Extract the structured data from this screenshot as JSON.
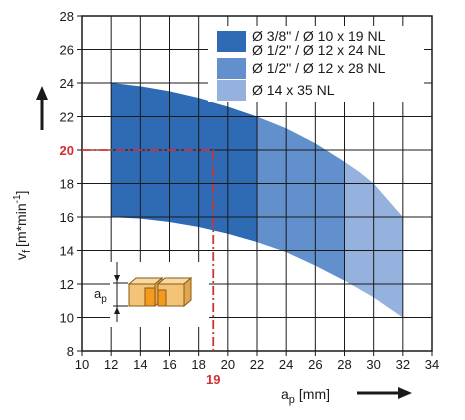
{
  "chart_data": {
    "type": "area",
    "title": "",
    "xlabel": {
      "main": "a",
      "sub": "p",
      "unit": "[mm]"
    },
    "ylabel": {
      "main": "v",
      "sub": "f",
      "unit": "[m*min",
      "exp": "-1",
      "close": "]"
    },
    "xlim": [
      10,
      34
    ],
    "ylim": [
      8,
      28
    ],
    "xticks": [
      "10",
      "12",
      "14",
      "16",
      "18",
      "20",
      "22",
      "24",
      "26",
      "28",
      "30",
      "32",
      "34"
    ],
    "yticks": [
      "8",
      "10",
      "12",
      "14",
      "16",
      "18",
      "20",
      "22",
      "24",
      "26",
      "28"
    ],
    "grid": true,
    "legend_position": "top-right",
    "series": [
      {
        "name_lines": [
          "Ø 3/8\" / Ø 10 x 19 NL",
          "Ø 1/2\" / Ø 12 x 24 NL"
        ],
        "color": "#2f6bb5",
        "x_range": [
          12,
          22
        ],
        "upper": [
          [
            12,
            24
          ],
          [
            14,
            23.8
          ],
          [
            16,
            23.5
          ],
          [
            18,
            23.1
          ],
          [
            20,
            22.6
          ],
          [
            22,
            22.0
          ]
        ],
        "lower": [
          [
            12,
            16
          ],
          [
            14,
            15.9
          ],
          [
            16,
            15.7
          ],
          [
            18,
            15.4
          ],
          [
            20,
            15.0
          ],
          [
            22,
            14.5
          ]
        ]
      },
      {
        "name_lines": [
          "Ø 1/2\" / Ø 12 x 28 NL"
        ],
        "color": "#6190cc",
        "x_range": [
          22,
          28
        ],
        "upper": [
          [
            22,
            22.0
          ],
          [
            24,
            21.3
          ],
          [
            26,
            20.4
          ],
          [
            28,
            19.3
          ]
        ],
        "lower": [
          [
            22,
            14.5
          ],
          [
            24,
            13.9
          ],
          [
            26,
            13.1
          ],
          [
            28,
            12.2
          ]
        ]
      },
      {
        "name_lines": [
          "Ø 14 x 35 NL"
        ],
        "color": "#94b2dd",
        "x_range": [
          28,
          32
        ],
        "upper": [
          [
            28,
            19.3
          ],
          [
            29,
            18.7
          ],
          [
            30,
            18.0
          ],
          [
            31,
            17.0
          ],
          [
            32,
            16.0
          ]
        ],
        "lower": [
          [
            28,
            12.2
          ],
          [
            29,
            11.7
          ],
          [
            30,
            11.2
          ],
          [
            31,
            10.6
          ],
          [
            32,
            10.0
          ]
        ]
      }
    ],
    "reference": {
      "x": 19,
      "y": 20,
      "x_label": "19",
      "y_label": "20",
      "color": "#d32f2f"
    },
    "inset": {
      "label_main": "a",
      "label_sub": "p",
      "icon": "cutting-insert-icon"
    },
    "colors": {
      "grid": "#1a1a1a",
      "plot_bg": "#ffffff",
      "arrow": "#1a1a1a"
    }
  }
}
